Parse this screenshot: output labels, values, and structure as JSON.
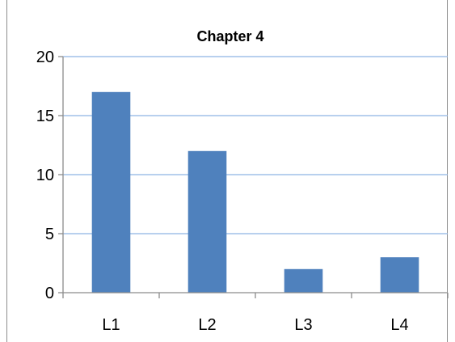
{
  "chart_data": {
    "type": "bar",
    "title": "Chapter 4",
    "xlabel": "",
    "ylabel": "",
    "categories": [
      "L1",
      "L2",
      "L3",
      "L4"
    ],
    "values": [
      17,
      12,
      2,
      3
    ],
    "ylim": [
      0,
      20
    ],
    "yticks": [
      0,
      5,
      10,
      15,
      20
    ],
    "grid": true,
    "legend": "none",
    "bar_color": "#4f81bd",
    "grid_color": "#8eb4e3",
    "axis_color": "#8c8c8c"
  }
}
